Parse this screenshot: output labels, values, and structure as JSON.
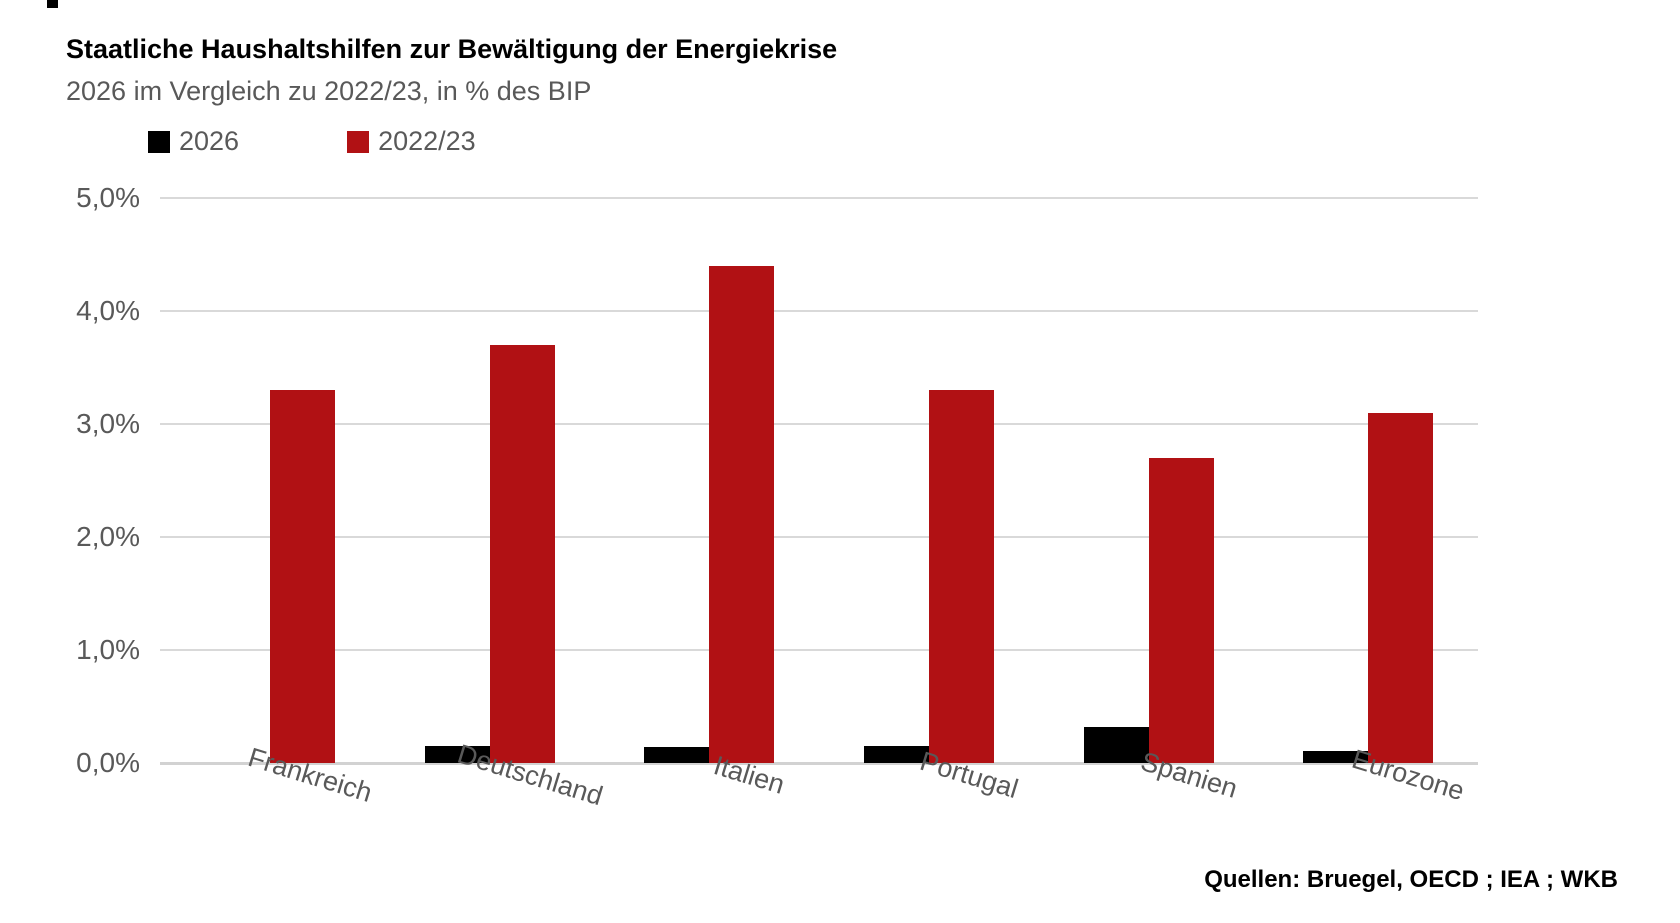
{
  "chart_data": {
    "type": "bar",
    "title": "Staatliche Haushaltshilfen zur Bewältigung der Energiekrise",
    "subtitle": "2026 im Vergleich zu 2022/23, in % des BIP",
    "categories": [
      "Frankreich",
      "Deutschland",
      "Italien",
      "Portugal",
      "Spanien",
      "Eurozone"
    ],
    "series": [
      {
        "name": "2026",
        "color": "#000000",
        "values": [
          0,
          0.15,
          0.14,
          0.15,
          0.32,
          0.11
        ]
      },
      {
        "name": "2022/23",
        "color": "#B11114",
        "values": [
          3.3,
          3.7,
          4.4,
          3.3,
          2.7,
          3.1
        ]
      }
    ],
    "y_axis": {
      "min": 0,
      "max": 5,
      "ticks": [
        "5,0%",
        "4,0%",
        "3,0%",
        "2,0%",
        "1,0%",
        "0,0%"
      ],
      "tick_values": [
        5,
        4,
        3,
        2,
        1,
        0
      ],
      "unit": "% des BIP"
    },
    "grid": true,
    "legend_position": "top-left",
    "source": "Quellen: Bruegel, OECD ; IEA ; WKB"
  },
  "colors": {
    "grid": "#d9d9d9",
    "axis_text": "#595959",
    "bar_2026": "#000000",
    "bar_2022_23": "#B11114"
  }
}
